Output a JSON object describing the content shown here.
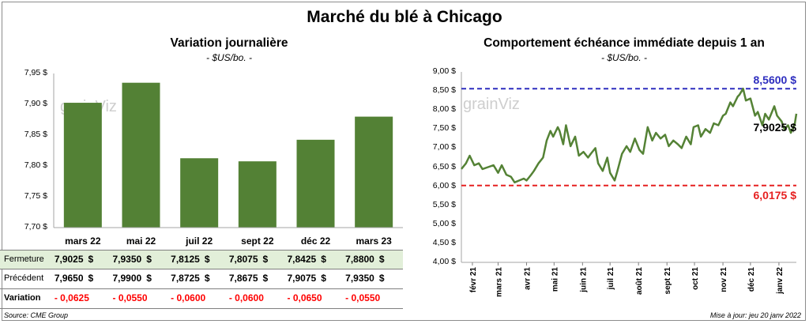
{
  "title": "Marché du blé à Chicago",
  "colors": {
    "bar": "#538135",
    "bar_light": "#e2efd9",
    "high": "#2e2ebf",
    "low": "#e62020",
    "line": "#548235",
    "negative": "#ff0000"
  },
  "left": {
    "title": "Variation  journalière",
    "subtitle": "- $US/bo. -",
    "watermark": "grainViz",
    "y_ticks": [
      "7,95 $",
      "7,90 $",
      "7,85 $",
      "7,80 $",
      "7,75 $",
      "7,70 $"
    ],
    "table": {
      "rows": [
        {
          "label": "Fermeture",
          "values": [
            "7,9025",
            "7,9350",
            "7,8125",
            "7,8075",
            "7,8425",
            "7,8800"
          ],
          "dollar": "$"
        },
        {
          "label": "Précédent",
          "values": [
            "7,9650",
            "7,9900",
            "7,8725",
            "7,8675",
            "7,9075",
            "7,9350"
          ],
          "dollar": "$"
        },
        {
          "label": "Variation",
          "values": [
            "- 0,0625",
            "- 0,0550",
            "- 0,0600",
            "- 0,0600",
            "- 0,0650",
            "- 0,0550"
          ]
        }
      ]
    }
  },
  "right": {
    "title": "Comportement  échéance immédiate depuis 1 an",
    "subtitle": "- $US/bo. -",
    "watermark": "grainViz",
    "y_ticks": [
      "9,00 $",
      "8,50 $",
      "8,00 $",
      "7,50 $",
      "7,00 $",
      "6,50 $",
      "6,00 $",
      "5,50 $",
      "5,00 $",
      "4,50 $",
      "4,00 $"
    ],
    "x_ticks": [
      "févr 21",
      "mars 21",
      "avr 21",
      "mai 21",
      "juin 21",
      "juil 21",
      "août 21",
      "sept 21",
      "oct 21",
      "nov 21",
      "déc 21",
      "janv 22"
    ],
    "high_label": "8,5600 $",
    "low_label": "6,0175 $",
    "last_label": "7,9025 $"
  },
  "footer": {
    "source": "Source: CME Group",
    "update": "Mise à jour: jeu 20 janv 2022"
  },
  "chart_data": [
    {
      "type": "bar",
      "title": "Variation  journalière",
      "subtitle": "- $US/bo. -",
      "categories": [
        "mars 22",
        "mai 22",
        "juil 22",
        "sept 22",
        "déc 22",
        "mars 23"
      ],
      "values": [
        7.9025,
        7.935,
        7.8125,
        7.8075,
        7.8425,
        7.88
      ],
      "ylim": [
        7.7,
        7.95
      ],
      "grid": false
    },
    {
      "type": "line",
      "title": "Comportement  échéance immédiate depuis 1 an",
      "subtitle": "- $US/bo. -",
      "ylim": [
        4.0,
        9.0
      ],
      "x_range": [
        "2021-01-20",
        "2022-01-20"
      ],
      "reference_lines": [
        {
          "value": 8.56,
          "label": "8,5600 $"
        },
        {
          "value": 6.0175,
          "label": "6,0175 $"
        }
      ],
      "series": [
        {
          "x": [
            "2021-01-20",
            "2021-01-25",
            "2021-01-29",
            "2021-02-03",
            "2021-02-08",
            "2021-02-12",
            "2021-02-18",
            "2021-02-24",
            "2021-03-01",
            "2021-03-05",
            "2021-03-10",
            "2021-03-15",
            "2021-03-19",
            "2021-03-24",
            "2021-03-29",
            "2021-04-01",
            "2021-04-06",
            "2021-04-09",
            "2021-04-14",
            "2021-04-19",
            "2021-04-23",
            "2021-04-27",
            "2021-04-30",
            "2021-05-05",
            "2021-05-07",
            "2021-05-11",
            "2021-05-14",
            "2021-05-19",
            "2021-05-24",
            "2021-05-28",
            "2021-06-02",
            "2021-06-07",
            "2021-06-10",
            "2021-06-15",
            "2021-06-18",
            "2021-06-23",
            "2021-06-28",
            "2021-07-01",
            "2021-07-06",
            "2021-07-09",
            "2021-07-14",
            "2021-07-19",
            "2021-07-23",
            "2021-07-28",
            "2021-08-02",
            "2021-08-06",
            "2021-08-11",
            "2021-08-16",
            "2021-08-20",
            "2021-08-25",
            "2021-08-30",
            "2021-09-03",
            "2021-09-08",
            "2021-09-13",
            "2021-09-17",
            "2021-09-22",
            "2021-09-27",
            "2021-09-30",
            "2021-10-05",
            "2021-10-08",
            "2021-10-13",
            "2021-10-18",
            "2021-10-22",
            "2021-10-27",
            "2021-11-01",
            "2021-11-04",
            "2021-11-09",
            "2021-11-12",
            "2021-11-17",
            "2021-11-19",
            "2021-11-23",
            "2021-11-26",
            "2021-12-01",
            "2021-12-06",
            "2021-12-09",
            "2021-12-14",
            "2021-12-17",
            "2021-12-21",
            "2021-12-27",
            "2021-12-30",
            "2022-01-04",
            "2022-01-07",
            "2022-01-11",
            "2022-01-14",
            "2022-01-18",
            "2022-01-20"
          ],
          "values": [
            6.45,
            6.6,
            6.8,
            6.55,
            6.6,
            6.45,
            6.5,
            6.55,
            6.35,
            6.55,
            6.3,
            6.25,
            6.1,
            6.15,
            6.2,
            6.15,
            6.3,
            6.4,
            6.6,
            6.75,
            7.2,
            7.45,
            7.3,
            7.55,
            7.45,
            7.1,
            7.6,
            7.05,
            7.3,
            6.8,
            6.9,
            6.75,
            6.85,
            7.0,
            6.6,
            6.4,
            6.75,
            6.35,
            6.15,
            6.4,
            6.85,
            7.05,
            6.9,
            7.25,
            6.95,
            6.85,
            7.55,
            7.2,
            7.4,
            7.25,
            7.35,
            7.05,
            7.2,
            7.1,
            7.0,
            7.3,
            7.1,
            7.55,
            7.6,
            7.3,
            7.5,
            7.4,
            7.65,
            7.6,
            7.85,
            7.9,
            8.2,
            8.1,
            8.35,
            8.4,
            8.56,
            8.25,
            8.3,
            7.85,
            7.95,
            7.6,
            7.9,
            7.75,
            8.1,
            7.85,
            7.7,
            7.5,
            7.6,
            7.4,
            7.6,
            7.9025
          ]
        }
      ]
    }
  ]
}
